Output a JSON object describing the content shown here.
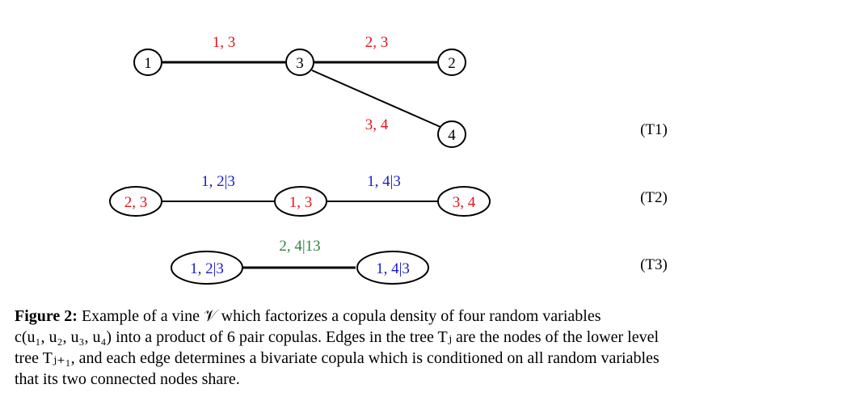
{
  "colors": {
    "t1_labels": "#e8121a",
    "t2_labels": "#1a1ad6",
    "t3_labels": "#2e8540",
    "node_text": "#000000"
  },
  "trees": [
    {
      "label": "(T1)",
      "nodes": [
        {
          "id": "1",
          "label": "1"
        },
        {
          "id": "3",
          "label": "3"
        },
        {
          "id": "2",
          "label": "2"
        },
        {
          "id": "4",
          "label": "4"
        }
      ],
      "edges": [
        {
          "from": "1",
          "to": "3",
          "label": "1, 3"
        },
        {
          "from": "3",
          "to": "2",
          "label": "2, 3"
        },
        {
          "from": "3",
          "to": "4",
          "label": "3, 4"
        }
      ]
    },
    {
      "label": "(T2)",
      "nodes": [
        {
          "id": "23",
          "label": "2, 3"
        },
        {
          "id": "13",
          "label": "1, 3"
        },
        {
          "id": "34",
          "label": "3, 4"
        }
      ],
      "edges": [
        {
          "from": "23",
          "to": "13",
          "label": "1, 2|3"
        },
        {
          "from": "13",
          "to": "34",
          "label": "1, 4|3"
        }
      ]
    },
    {
      "label": "(T3)",
      "nodes": [
        {
          "id": "12_3",
          "label": "1, 2|3"
        },
        {
          "id": "14_3",
          "label": "1, 4|3"
        }
      ],
      "edges": [
        {
          "from": "12_3",
          "to": "14_3",
          "label": "2, 4|13"
        }
      ]
    }
  ],
  "caption": {
    "prefix": "Figure 2:",
    "lines": [
      "Example of a vine 𝒱 which factorizes a copula density of four random variables",
      "c(u₁, u₂, u₃, u₄) into a product of 6 pair copulas. Edges in the tree Tⱼ are the nodes of the lower level",
      "tree Tⱼ₊₁, and each edge determines a bivariate copula which is conditioned on all random variables",
      "that its two connected nodes share."
    ]
  }
}
